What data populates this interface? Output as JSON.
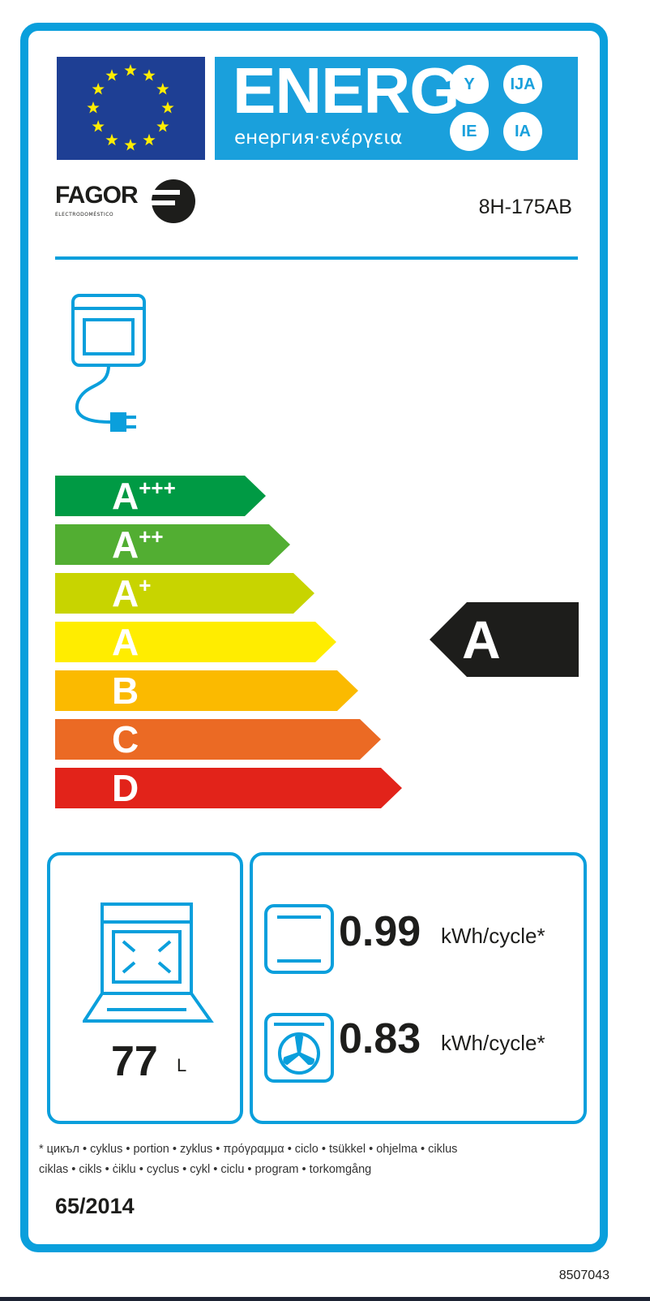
{
  "header": {
    "energy_title": "ENERG",
    "energy_subtitle": "енергия·ενέργεια",
    "language_suffixes": [
      "Y",
      "IJA",
      "IE",
      "IA"
    ]
  },
  "brand": {
    "name": "FAGOR",
    "tagline": "ELECTRODOMÉSTICO"
  },
  "model": "8H-175AB",
  "scale": {
    "classes": [
      {
        "letter": "A",
        "plus": "+++",
        "color": "#009a44"
      },
      {
        "letter": "A",
        "plus": "++",
        "color": "#52ae32"
      },
      {
        "letter": "A",
        "plus": "+",
        "color": "#c8d400"
      },
      {
        "letter": "A",
        "plus": "",
        "color": "#ffed00"
      },
      {
        "letter": "B",
        "plus": "",
        "color": "#fbba00"
      },
      {
        "letter": "C",
        "plus": "",
        "color": "#eb6a24"
      },
      {
        "letter": "D",
        "plus": "",
        "color": "#e2231a"
      }
    ],
    "rated_class": "A"
  },
  "volume": {
    "value": "77",
    "unit": "L"
  },
  "consumption": {
    "conventional": {
      "value": "0.99",
      "unit": "kWh/cycle*"
    },
    "fan_forced": {
      "value": "0.83",
      "unit": "kWh/cycle*"
    }
  },
  "footnote": {
    "line1": "* цикъл • cyklus • portion • zyklus • πρόγραμμα • ciclo • tsükkel • ohjelma • ciklus",
    "line2": "ciklas • cikls • ċiklu • cyclus • cykl • ciclu • program • torkomgång"
  },
  "regulation": "65/2014",
  "label_code": "8507043",
  "colors": {
    "frame": "#0a9fdc",
    "eu_blue": "#1e3f94",
    "banner": "#1aa0dc"
  }
}
